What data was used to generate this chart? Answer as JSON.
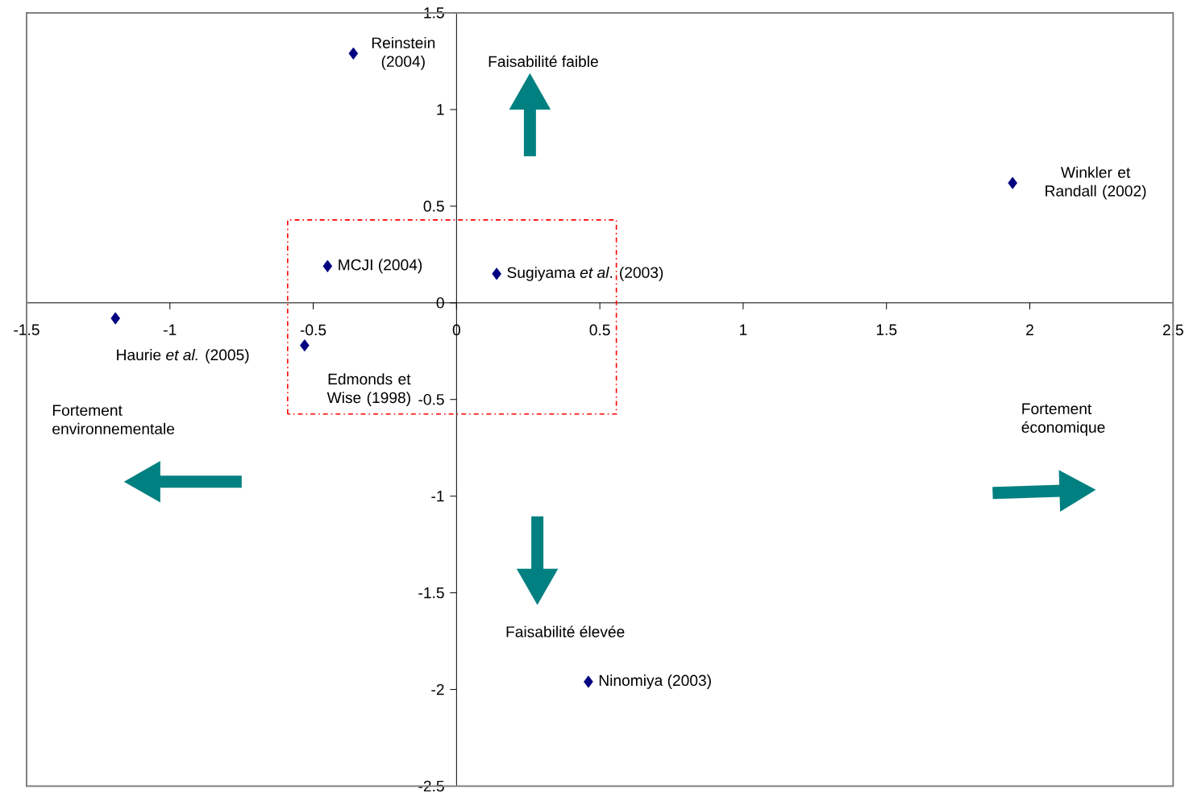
{
  "chart_data": {
    "type": "scatter",
    "x": [
      -0.36,
      1.94,
      -0.45,
      0.14,
      -1.19,
      -0.53,
      0.46
    ],
    "values": [
      1.29,
      0.62,
      0.19,
      0.15,
      -0.08,
      -0.22,
      -1.96
    ],
    "color": "#000080",
    "marker": "diamond",
    "xlim": [
      -1.5,
      2.5
    ],
    "ylim": [
      -2.5,
      1.5
    ],
    "xticks": [
      -1.5,
      -1,
      -0.5,
      0,
      0.5,
      1,
      1.5,
      2,
      2.5
    ],
    "yticks": [
      1.5,
      1,
      0.5,
      0,
      -0.5,
      -1,
      -1.5,
      -2,
      -2.5
    ],
    "annotations": [
      {
        "text": "Reinstein (2004)",
        "x": -0.36,
        "y": 1.29
      },
      {
        "text": "Winkler et Randall (2002)",
        "x": 1.94,
        "y": 0.62
      },
      {
        "text": "MCJI (2004)",
        "x": -0.45,
        "y": 0.19
      },
      {
        "text": "Sugiyama *et al*. (2003)",
        "x": 0.14,
        "y": 0.15
      },
      {
        "text": "Haurie *et al.* (2005)",
        "x": -1.19,
        "y": -0.08
      },
      {
        "text": "Edmonds et Wise (1998)",
        "x": -0.53,
        "y": -0.22
      },
      {
        "text": "Ninomiya (2003)",
        "x": 0.46,
        "y": -1.96
      },
      "Faisabilité faible",
      "Faisabilité élevée",
      "Fortement environnementale",
      "Fortement économique"
    ]
  }
}
